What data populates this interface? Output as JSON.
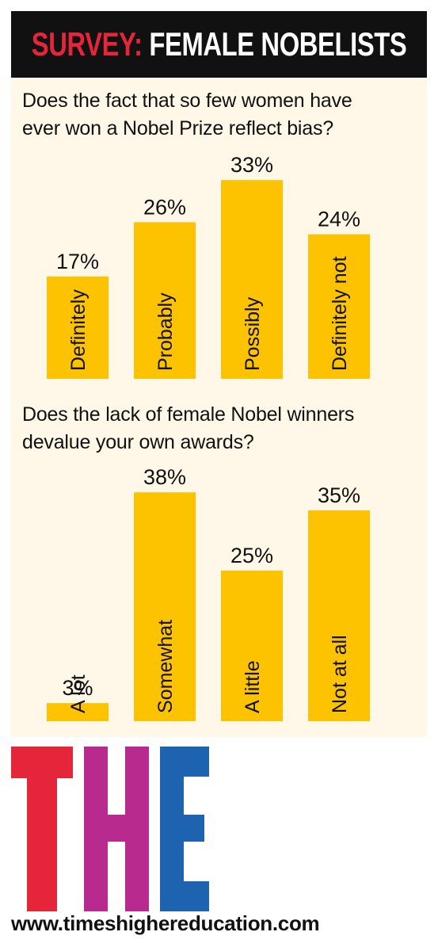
{
  "header": {
    "prefix": "SURVEY:",
    "title": "FEMALE NOBELISTS"
  },
  "colors": {
    "bar": "#fdc300",
    "panel": "#fff7e8",
    "header_bg": "#111111",
    "header_accent": "#e5253a",
    "logo_t": "#e5253a",
    "logo_h": "#b92a8e",
    "logo_e": "#1e63b0"
  },
  "chart_data": [
    {
      "type": "bar",
      "title": "Does the fact that so few women have ever won a Nobel Prize reflect bias?",
      "title_lines": [
        "Does the fact that so few women have",
        "ever won a Nobel Prize reflect bias?"
      ],
      "categories": [
        "Definitely",
        "Probably",
        "Possibly",
        "Definitely not"
      ],
      "values": [
        17,
        26,
        33,
        24
      ],
      "value_labels": [
        "17%",
        "26%",
        "33%",
        "24%"
      ],
      "unit": "%",
      "ylim": [
        0,
        38
      ],
      "grid": false,
      "legend": "none"
    },
    {
      "type": "bar",
      "title": "Does the lack of female Nobel winners devalue your own awards?",
      "title_lines": [
        "Does the lack of female Nobel winners",
        "devalue your own awards?"
      ],
      "categories": [
        "A lot",
        "Somewhat",
        "A little",
        "Not at all"
      ],
      "values": [
        3,
        38,
        25,
        35
      ],
      "value_labels": [
        "3%",
        "38%",
        "25%",
        "35%"
      ],
      "unit": "%",
      "ylim": [
        0,
        38
      ],
      "grid": false,
      "legend": "none"
    }
  ],
  "logo": {
    "text": "THE"
  },
  "footer": {
    "website": "www.timeshighereducation.com"
  }
}
